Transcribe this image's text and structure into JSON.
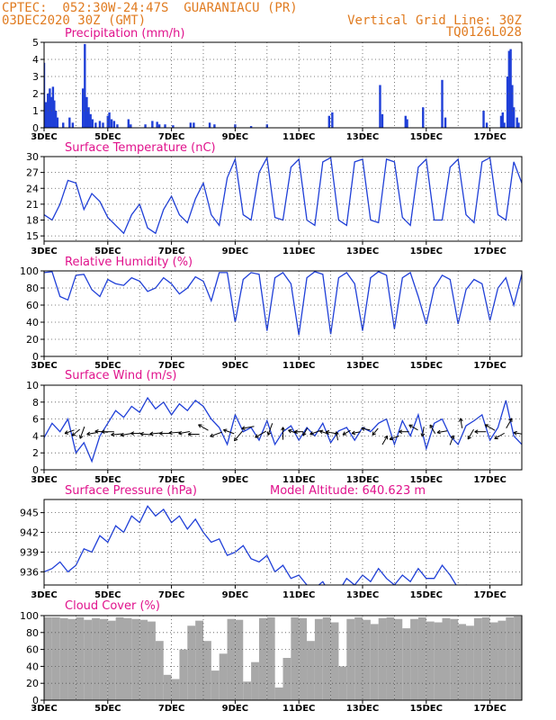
{
  "header": {
    "line1": "CPTEC:  052:30W-24:47S  GUARANIACU (PR)",
    "line2": "03DEC2020 30Z (GMT)",
    "grid_note": "Vertical Grid Line: 30Z",
    "run_code": "TQ0126L028"
  },
  "colors": {
    "header": "#e07b20",
    "title": "#e0128c",
    "series": "#1f3fd8",
    "precip": "#1f3fd8",
    "cloud": "#a8a8a8",
    "arrow": "#000000"
  },
  "x_ticks": [
    "3DEC",
    "5DEC",
    "7DEC",
    "9DEC",
    "11DEC",
    "13DEC",
    "15DEC",
    "17DEC"
  ],
  "chart_data": [
    {
      "id": "precip",
      "type": "bar",
      "title": "Precipitation (mm/h)",
      "ylim": [
        0,
        5
      ],
      "yticks": [
        "0",
        "1",
        "2",
        "3",
        "4",
        "5"
      ],
      "x_days": [
        0,
        15
      ],
      "bars": [
        [
          0.0,
          3.8
        ],
        [
          0.06,
          1.5
        ],
        [
          0.12,
          2.0
        ],
        [
          0.18,
          2.3
        ],
        [
          0.22,
          1.8
        ],
        [
          0.28,
          2.4
        ],
        [
          0.32,
          1.6
        ],
        [
          0.37,
          1.0
        ],
        [
          0.42,
          0.6
        ],
        [
          0.6,
          0.3
        ],
        [
          0.8,
          0.6
        ],
        [
          0.9,
          0.3
        ],
        [
          1.22,
          2.3
        ],
        [
          1.28,
          4.9
        ],
        [
          1.34,
          1.8
        ],
        [
          1.4,
          1.2
        ],
        [
          1.46,
          0.8
        ],
        [
          1.52,
          0.5
        ],
        [
          1.62,
          0.3
        ],
        [
          1.75,
          0.4
        ],
        [
          1.85,
          0.3
        ],
        [
          2.0,
          0.7
        ],
        [
          2.05,
          0.9
        ],
        [
          2.12,
          0.5
        ],
        [
          2.2,
          0.4
        ],
        [
          2.3,
          0.2
        ],
        [
          2.65,
          0.5
        ],
        [
          2.72,
          0.2
        ],
        [
          3.18,
          0.2
        ],
        [
          3.4,
          0.4
        ],
        [
          3.55,
          0.35
        ],
        [
          3.62,
          0.2
        ],
        [
          3.8,
          0.2
        ],
        [
          4.05,
          0.15
        ],
        [
          4.6,
          0.3
        ],
        [
          4.7,
          0.3
        ],
        [
          5.2,
          0.3
        ],
        [
          5.35,
          0.2
        ],
        [
          6.0,
          0.2
        ],
        [
          6.5,
          0.1
        ],
        [
          7.0,
          0.2
        ],
        [
          8.95,
          0.7
        ],
        [
          9.05,
          0.9
        ],
        [
          10.55,
          2.5
        ],
        [
          10.62,
          0.8
        ],
        [
          11.35,
          0.7
        ],
        [
          11.4,
          0.5
        ],
        [
          11.9,
          1.2
        ],
        [
          12.5,
          2.8
        ],
        [
          12.6,
          0.6
        ],
        [
          13.8,
          1.0
        ],
        [
          13.9,
          0.3
        ],
        [
          14.35,
          0.7
        ],
        [
          14.4,
          0.9
        ],
        [
          14.45,
          0.3
        ],
        [
          14.55,
          3.0
        ],
        [
          14.6,
          4.5
        ],
        [
          14.65,
          4.6
        ],
        [
          14.7,
          2.5
        ],
        [
          14.75,
          1.2
        ],
        [
          14.85,
          0.6
        ],
        [
          14.9,
          0.3
        ]
      ]
    },
    {
      "id": "temp",
      "type": "line",
      "title": "Surface Temperature (nC)",
      "ylim": [
        14,
        30
      ],
      "yticks": [
        "15",
        "18",
        "21",
        "24",
        "27",
        "30"
      ],
      "tick_values": [
        15,
        18,
        21,
        24,
        27,
        30
      ],
      "x_days": [
        0,
        15
      ],
      "x": [
        0,
        0.25,
        0.5,
        0.75,
        1.0,
        1.25,
        1.5,
        1.75,
        2.0,
        2.25,
        2.5,
        2.75,
        3.0,
        3.25,
        3.5,
        3.75,
        4.0,
        4.25,
        4.5,
        4.75,
        5.0,
        5.25,
        5.5,
        5.75,
        6.0,
        6.25,
        6.5,
        6.75,
        7.0,
        7.25,
        7.5,
        7.75,
        8.0,
        8.25,
        8.5,
        8.75,
        9.0,
        9.25,
        9.5,
        9.75,
        10.0,
        10.25,
        10.5,
        10.75,
        11.0,
        11.25,
        11.5,
        11.75,
        12.0,
        12.25,
        12.5,
        12.75,
        13.0,
        13.25,
        13.5,
        13.75,
        14.0,
        14.25,
        14.5,
        14.75,
        15.0
      ],
      "y": [
        19,
        18,
        21,
        25.5,
        25,
        20,
        23,
        21.5,
        18.5,
        17,
        15.5,
        19,
        21,
        16.5,
        15.5,
        20,
        22.5,
        19,
        17.5,
        22,
        25,
        19,
        17,
        26,
        29.5,
        19,
        18,
        27,
        29.8,
        18.5,
        18,
        28,
        29.5,
        18,
        17,
        29,
        29.8,
        18,
        17,
        29,
        29.5,
        18,
        17.5,
        29.5,
        29,
        18.5,
        17,
        28,
        29.5,
        18,
        18,
        28,
        29.5,
        19,
        17.5,
        29,
        29.8,
        19,
        18,
        29,
        25
      ]
    },
    {
      "id": "rh",
      "type": "line",
      "title": "Relative Humidity (%)",
      "ylim": [
        0,
        100
      ],
      "yticks": [
        "0",
        "20",
        "40",
        "60",
        "80",
        "100"
      ],
      "tick_values": [
        0,
        20,
        40,
        60,
        80,
        100
      ],
      "x_days": [
        0,
        15
      ],
      "x": [
        0,
        0.25,
        0.5,
        0.75,
        1.0,
        1.25,
        1.5,
        1.75,
        2.0,
        2.25,
        2.5,
        2.75,
        3.0,
        3.25,
        3.5,
        3.75,
        4.0,
        4.25,
        4.5,
        4.75,
        5.0,
        5.25,
        5.5,
        5.75,
        6.0,
        6.25,
        6.5,
        6.75,
        7.0,
        7.25,
        7.5,
        7.75,
        8.0,
        8.25,
        8.5,
        8.75,
        9.0,
        9.25,
        9.5,
        9.75,
        10.0,
        10.25,
        10.5,
        10.75,
        11.0,
        11.25,
        11.5,
        11.75,
        12.0,
        12.25,
        12.5,
        12.75,
        13.0,
        13.25,
        13.5,
        13.75,
        14.0,
        14.25,
        14.5,
        14.75,
        15.0
      ],
      "y": [
        98,
        99,
        70,
        66,
        95,
        96,
        78,
        70,
        90,
        85,
        83,
        92,
        88,
        76,
        80,
        92,
        85,
        73,
        80,
        93,
        88,
        65,
        98,
        98,
        40,
        90,
        98,
        96,
        30,
        92,
        98,
        85,
        25,
        92,
        99,
        96,
        26,
        92,
        98,
        85,
        30,
        92,
        99,
        95,
        32,
        92,
        98,
        70,
        38,
        80,
        95,
        90,
        38,
        78,
        90,
        85,
        42,
        80,
        92,
        60,
        96
      ]
    },
    {
      "id": "wind",
      "type": "line",
      "title": "Surface Wind (m/s)",
      "ylim": [
        0,
        10
      ],
      "yticks": [
        "0",
        "2",
        "4",
        "6",
        "8",
        "10"
      ],
      "tick_values": [
        0,
        2,
        4,
        6,
        8,
        10
      ],
      "x_days": [
        0,
        15
      ],
      "x": [
        0,
        0.25,
        0.5,
        0.75,
        1.0,
        1.25,
        1.5,
        1.75,
        2.0,
        2.25,
        2.5,
        2.75,
        3.0,
        3.25,
        3.5,
        3.75,
        4.0,
        4.25,
        4.5,
        4.75,
        5.0,
        5.25,
        5.5,
        5.75,
        6.0,
        6.25,
        6.5,
        6.75,
        7.0,
        7.25,
        7.5,
        7.75,
        8.0,
        8.25,
        8.5,
        8.75,
        9.0,
        9.25,
        9.5,
        9.75,
        10.0,
        10.25,
        10.5,
        10.75,
        11.0,
        11.25,
        11.5,
        11.75,
        12.0,
        12.25,
        12.5,
        12.75,
        13.0,
        13.25,
        13.5,
        13.75,
        14.0,
        14.25,
        14.5,
        14.75,
        15.0
      ],
      "y": [
        3.8,
        5.5,
        4.5,
        6.0,
        2.0,
        3.2,
        1.0,
        4.0,
        5.5,
        7.0,
        6.2,
        7.5,
        6.8,
        8.5,
        7.2,
        8.0,
        6.5,
        7.8,
        7.0,
        8.2,
        7.5,
        6.0,
        5.0,
        3.0,
        6.5,
        4.5,
        5.0,
        3.5,
        5.8,
        3.0,
        4.5,
        5.2,
        3.5,
        5.0,
        4.0,
        5.5,
        3.2,
        4.6,
        5.0,
        3.5,
        5.0,
        4.5,
        5.5,
        6.0,
        3.0,
        5.8,
        4.0,
        6.5,
        2.5,
        5.5,
        6.0,
        4.0,
        3.0,
        5.2,
        5.8,
        6.5,
        3.5,
        5.0,
        8.2,
        4.0,
        3.0
      ],
      "arrows_x": [
        0.8,
        1.0,
        1.2,
        1.5,
        1.8,
        2.0,
        2.3,
        2.6,
        2.9,
        3.2,
        3.5,
        3.8,
        4.1,
        4.4,
        4.7,
        5.0,
        5.4,
        5.8,
        6.1,
        6.4,
        6.8,
        7.1,
        7.5,
        7.8,
        8.0,
        8.2,
        8.5,
        8.8,
        9.0,
        9.2,
        9.5,
        9.8,
        10.1,
        10.4,
        10.7,
        11.0,
        11.3,
        11.6,
        11.9,
        12.2,
        12.5,
        12.8,
        13.1,
        13.4,
        13.7,
        14.0,
        14.3,
        14.6,
        14.9
      ],
      "arrows_y": [
        4.5,
        4.4,
        4.4,
        4.3,
        4.5,
        4.5,
        4.2,
        4.2,
        4.3,
        4.2,
        4.3,
        4.3,
        4.4,
        4.4,
        4.2,
        5.0,
        4.2,
        4.5,
        4.0,
        5.0,
        4.2,
        4.8,
        4.3,
        4.5,
        4.5,
        4.5,
        4.4,
        4.4,
        4.4,
        4.0,
        4.4,
        4.4,
        4.8,
        4.5,
        3.5,
        3.8,
        4.5,
        5.0,
        4.5,
        4.8,
        4.5,
        3.5,
        5.5,
        4.2,
        4.5,
        5.0,
        4.0,
        5.5,
        4.3
      ],
      "arrows_dir": [
        200,
        220,
        250,
        190,
        175,
        180,
        185,
        190,
        180,
        175,
        185,
        180,
        185,
        190,
        180,
        150,
        200,
        160,
        230,
        190,
        210,
        250,
        90,
        160,
        180,
        240,
        200,
        160,
        170,
        100,
        210,
        190,
        170,
        230,
        60,
        200,
        180,
        150,
        260,
        120,
        190,
        70,
        100,
        240,
        180,
        150,
        210,
        60,
        170
      ],
      "arrows_len": [
        0.8,
        0.8,
        1.0,
        0.8,
        1.0,
        1.0,
        1.0,
        1.0,
        0.9,
        0.9,
        0.9,
        0.9,
        0.9,
        0.9,
        0.9,
        0.9,
        1.0,
        0.9,
        1.0,
        1.0,
        1.0,
        1.0,
        1.0,
        0.7,
        0.7,
        0.7,
        0.8,
        0.8,
        0.8,
        0.7,
        0.7,
        0.7,
        0.7,
        0.7,
        0.8,
        0.8,
        0.8,
        0.8,
        0.8,
        0.8,
        0.8,
        0.8,
        0.8,
        0.9,
        0.9,
        0.9,
        0.9,
        0.9,
        0.8
      ]
    },
    {
      "id": "press",
      "type": "line",
      "title": "Surface Pressure (hPa)",
      "annotation": "Model Altitude: 640.623 m",
      "ylim": [
        934,
        947
      ],
      "yticks": [
        "936",
        "939",
        "942",
        "945"
      ],
      "tick_values": [
        936,
        939,
        942,
        945
      ],
      "x_days": [
        0,
        15
      ],
      "x": [
        0,
        0.25,
        0.5,
        0.75,
        1.0,
        1.25,
        1.5,
        1.75,
        2.0,
        2.25,
        2.5,
        2.75,
        3.0,
        3.25,
        3.5,
        3.75,
        4.0,
        4.25,
        4.5,
        4.75,
        5.0,
        5.25,
        5.5,
        5.75,
        6.0,
        6.25,
        6.5,
        6.75,
        7.0,
        7.25,
        7.5,
        7.75,
        8.0,
        8.25,
        8.5,
        8.75,
        9.0,
        9.25,
        9.5,
        9.75,
        10.0,
        10.25,
        10.5,
        10.75,
        11.0,
        11.25,
        11.5,
        11.75,
        12.0,
        12.25,
        12.5,
        12.75,
        13.0,
        13.25,
        13.5,
        13.75,
        14.0,
        14.25,
        14.5,
        14.75,
        15.0
      ],
      "y": [
        936,
        936.5,
        937.5,
        936,
        937,
        939.5,
        939,
        941.5,
        940.5,
        943,
        942,
        944.5,
        943.5,
        946,
        944.5,
        945.5,
        943.5,
        944.5,
        942.5,
        944,
        942,
        940.5,
        941,
        938.5,
        939,
        940,
        938,
        937.5,
        938.5,
        936,
        937,
        935,
        935.5,
        934,
        933.5,
        934.5,
        932.5,
        933,
        935,
        934,
        935.5,
        934.5,
        936.5,
        935,
        934,
        935.5,
        934.5,
        936.5,
        935,
        935,
        937,
        935.5,
        933.5,
        934,
        932.5,
        933.5,
        931.5,
        933,
        931.5,
        932.5,
        932
      ]
    },
    {
      "id": "cloud",
      "type": "area",
      "title": "Cloud Cover (%)",
      "ylim": [
        0,
        100
      ],
      "yticks": [
        "0",
        "20",
        "40",
        "60",
        "80",
        "100"
      ],
      "tick_values": [
        0,
        20,
        40,
        60,
        80,
        100
      ],
      "x_days": [
        0,
        15
      ],
      "x": [
        0,
        0.25,
        0.5,
        0.75,
        1.0,
        1.25,
        1.5,
        1.75,
        2.0,
        2.25,
        2.5,
        2.75,
        3.0,
        3.25,
        3.5,
        3.75,
        4.0,
        4.25,
        4.5,
        4.75,
        5.0,
        5.25,
        5.5,
        5.75,
        6.0,
        6.25,
        6.5,
        6.75,
        7.0,
        7.25,
        7.5,
        7.75,
        8.0,
        8.25,
        8.5,
        8.75,
        9.0,
        9.25,
        9.5,
        9.75,
        10.0,
        10.25,
        10.5,
        10.75,
        11.0,
        11.25,
        11.5,
        11.75,
        12.0,
        12.25,
        12.5,
        12.75,
        13.0,
        13.25,
        13.5,
        13.75,
        14.0,
        14.25,
        14.5,
        14.75,
        15.0
      ],
      "y": [
        98,
        98,
        97,
        96,
        98,
        95,
        97,
        96,
        94,
        98,
        97,
        96,
        95,
        93,
        70,
        30,
        25,
        60,
        88,
        94,
        70,
        35,
        55,
        96,
        95,
        22,
        45,
        97,
        98,
        15,
        50,
        98,
        97,
        70,
        96,
        98,
        92,
        40,
        96,
        98,
        95,
        90,
        97,
        98,
        96,
        85,
        96,
        98,
        93,
        92,
        97,
        96,
        90,
        88,
        97,
        98,
        92,
        94,
        98,
        99,
        98
      ]
    }
  ]
}
